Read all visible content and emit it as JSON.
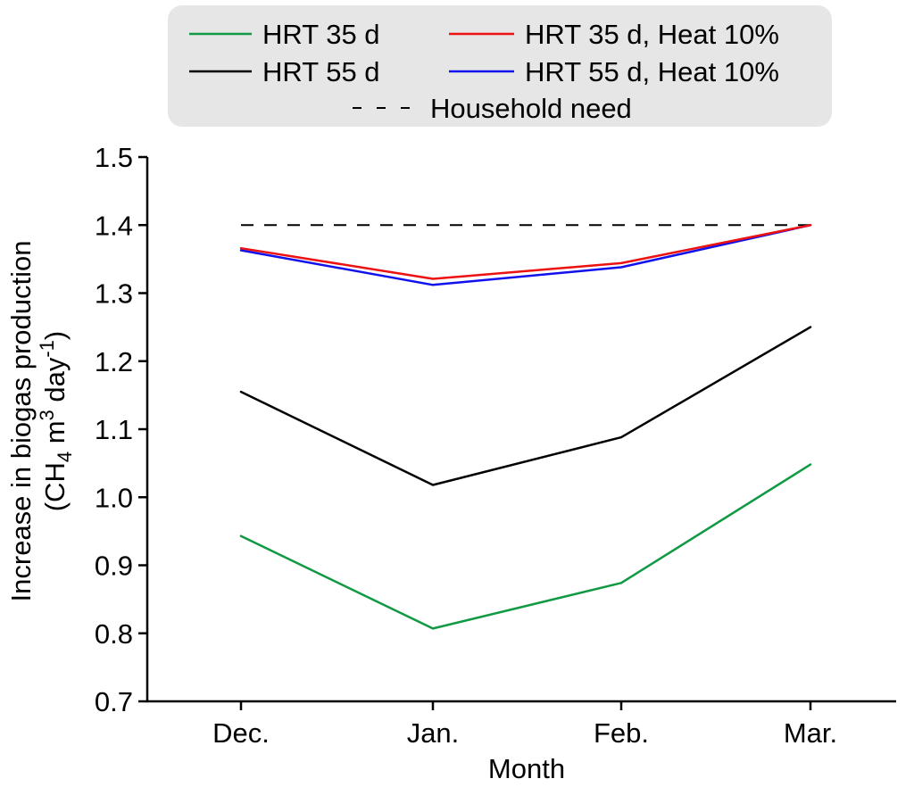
{
  "chart_data": {
    "type": "line",
    "title": "",
    "xlabel": "Month",
    "ylabel_line1": "Increase in biogas production",
    "ylabel_line2": {
      "prefix": "(CH",
      "sub": "4",
      "mid": " m",
      "sup": "3",
      "mid2": " day",
      "sup2": "-1",
      "suffix": ")"
    },
    "categories": [
      "Dec.",
      "Jan.",
      "Feb.",
      "Mar."
    ],
    "ylim": [
      0.7,
      1.5
    ],
    "yticks": [
      0.7,
      0.8,
      0.9,
      1.0,
      1.1,
      1.2,
      1.3,
      1.4,
      1.5
    ],
    "ytick_labels": [
      "0.7",
      "0.8",
      "0.9",
      "1.0",
      "1.1",
      "1.2",
      "1.3",
      "1.4",
      "1.5"
    ],
    "grid": false,
    "legend_position": "top-center",
    "series": [
      {
        "name": "HRT 35 d",
        "color": "#119944",
        "style": "solid",
        "values": [
          0.943,
          0.807,
          0.874,
          1.048
        ]
      },
      {
        "name": "HRT 55 d",
        "color": "#000000",
        "style": "solid",
        "values": [
          1.155,
          1.018,
          1.088,
          1.25
        ]
      },
      {
        "name": "HRT 35 d, Heat 10%",
        "color": "#ee1111",
        "style": "solid",
        "values": [
          1.366,
          1.321,
          1.344,
          1.4
        ]
      },
      {
        "name": "HRT 55 d, Heat 10%",
        "color": "#1111ee",
        "style": "solid",
        "values": [
          1.363,
          1.312,
          1.338,
          1.4
        ]
      },
      {
        "name": "Household need",
        "color": "#000000",
        "style": "dashed",
        "values": [
          1.4,
          1.4,
          1.4,
          1.4
        ]
      }
    ]
  }
}
